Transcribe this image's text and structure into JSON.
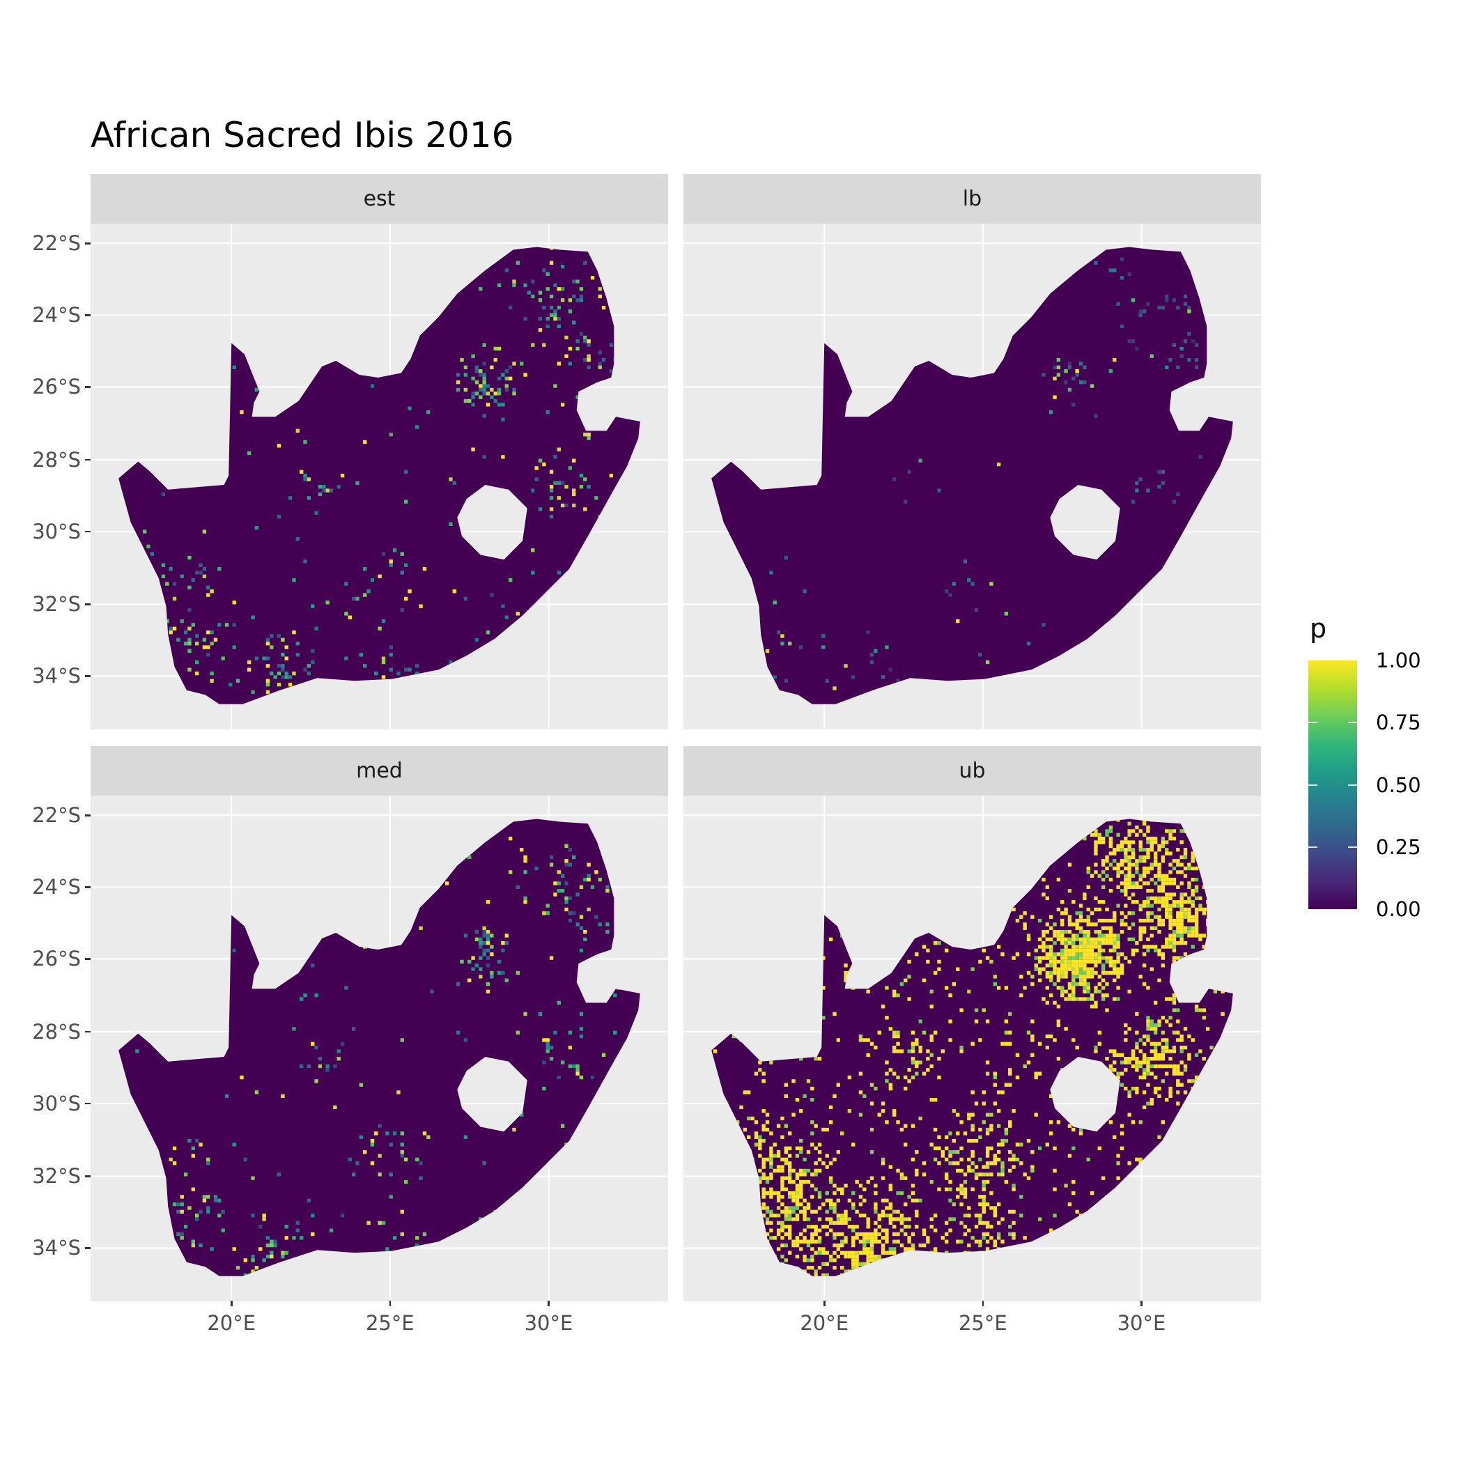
{
  "chart_data": {
    "type": "heatmap",
    "title": "African Sacred Ibis 2016",
    "facets": [
      "est",
      "lb",
      "med",
      "ub"
    ],
    "x_ticks": [
      "20°E",
      "25°E",
      "30°E"
    ],
    "x_tick_values": [
      20,
      25,
      30
    ],
    "y_ticks": [
      "22°S",
      "24°S",
      "26°S",
      "28°S",
      "30°S",
      "32°S",
      "34°S"
    ],
    "y_tick_values": [
      -22,
      -24,
      -26,
      -28,
      -30,
      -32,
      -34
    ],
    "xlim": [
      15.6,
      33.8
    ],
    "ylim": [
      -35.5,
      -21.5
    ],
    "grid": true,
    "legend": {
      "title": "p",
      "position": "right",
      "labels": [
        "1.00",
        "0.75",
        "0.50",
        "0.25",
        "0.00"
      ],
      "values": [
        1.0,
        0.75,
        0.5,
        0.25,
        0.0
      ],
      "colormap": "viridis",
      "colors": [
        "#440154",
        "#3b528b",
        "#21908d",
        "#5dc863",
        "#fde725"
      ]
    }
  }
}
